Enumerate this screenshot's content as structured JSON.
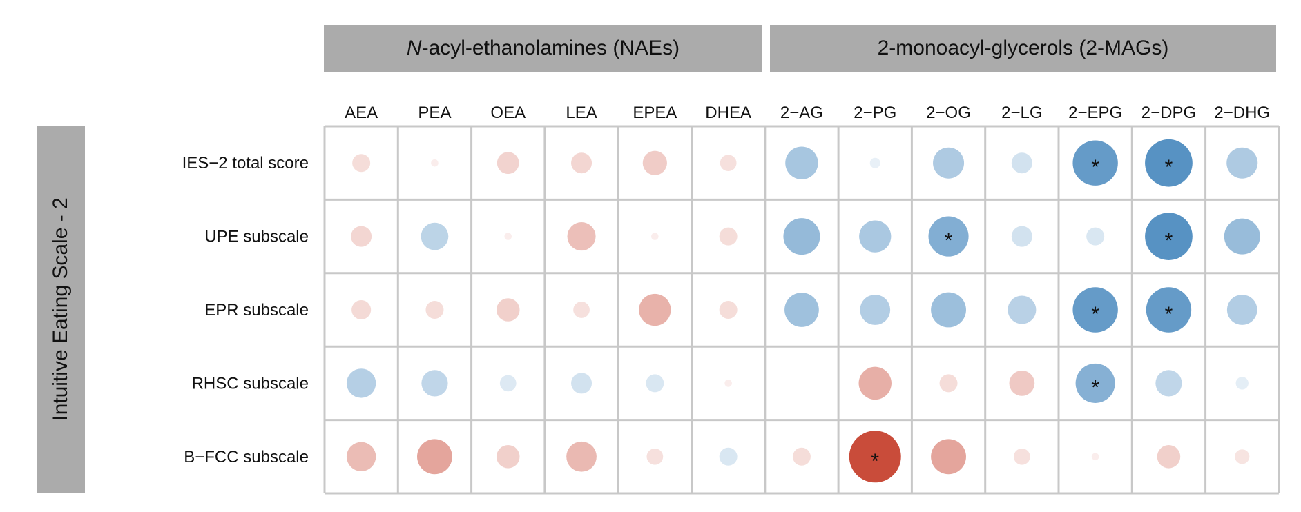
{
  "group_banners": {
    "nae": {
      "italic_part": "N",
      "rest": "-acyl-ethanolamines (NAEs)"
    },
    "mag": "2-monoacyl-glycerols (2-MAGs)"
  },
  "side_label": "Intuitive Eating Scale - 2",
  "colors": {
    "negative": "#c94c3a",
    "positive": "#3a7fb9",
    "grid": "#c8c8c8",
    "banner": "#ababab"
  },
  "chart_data": {
    "type": "heatmap",
    "style": "circle correlation matrix",
    "columns": [
      "AEA",
      "PEA",
      "OEA",
      "LEA",
      "EPEA",
      "DHEA",
      "2−AG",
      "2−PG",
      "2−OG",
      "2−LG",
      "2−EPG",
      "2−DPG",
      "2−DHG"
    ],
    "column_groups": [
      {
        "name": "N-acyl-ethanolamines (NAEs)",
        "columns": [
          "AEA",
          "PEA",
          "OEA",
          "LEA",
          "EPEA",
          "DHEA"
        ]
      },
      {
        "name": "2-monoacyl-glycerols (2-MAGs)",
        "columns": [
          "2−AG",
          "2−PG",
          "2−OG",
          "2−LG",
          "2−EPG",
          "2−DPG",
          "2−DHG"
        ]
      }
    ],
    "rows": [
      "IES−2 total score",
      "UPE subscale",
      "EPR subscale",
      "RHSC subscale",
      "B−FCC subscale"
    ],
    "values": [
      [
        -0.06,
        -0.01,
        -0.09,
        -0.08,
        -0.11,
        -0.05,
        0.2,
        0.02,
        0.18,
        0.08,
        0.38,
        0.42,
        0.18
      ],
      [
        -0.08,
        0.14,
        -0.01,
        -0.15,
        -0.01,
        -0.06,
        0.25,
        0.19,
        0.3,
        0.08,
        0.06,
        0.42,
        0.24
      ],
      [
        -0.07,
        -0.06,
        -0.1,
        -0.05,
        -0.19,
        -0.06,
        0.22,
        0.17,
        0.23,
        0.15,
        0.38,
        0.38,
        0.17
      ],
      [
        0.16,
        0.13,
        0.05,
        0.08,
        0.06,
        -0.01,
        0.0,
        -0.2,
        -0.06,
        -0.12,
        0.29,
        0.13,
        0.03
      ],
      [
        -0.16,
        -0.23,
        -0.1,
        -0.17,
        -0.05,
        0.06,
        -0.06,
        -0.5,
        -0.23,
        -0.05,
        -0.01,
        -0.1,
        -0.04
      ]
    ],
    "significant": [
      [
        false,
        false,
        false,
        false,
        false,
        false,
        false,
        false,
        false,
        false,
        true,
        true,
        false
      ],
      [
        false,
        false,
        false,
        false,
        false,
        false,
        false,
        false,
        true,
        false,
        false,
        true,
        false
      ],
      [
        false,
        false,
        false,
        false,
        false,
        false,
        false,
        false,
        false,
        false,
        true,
        true,
        false
      ],
      [
        false,
        false,
        false,
        false,
        false,
        false,
        false,
        false,
        false,
        false,
        true,
        false,
        false
      ],
      [
        false,
        false,
        false,
        false,
        false,
        false,
        false,
        true,
        false,
        false,
        false,
        false,
        false
      ]
    ],
    "significance_marker": "*"
  }
}
